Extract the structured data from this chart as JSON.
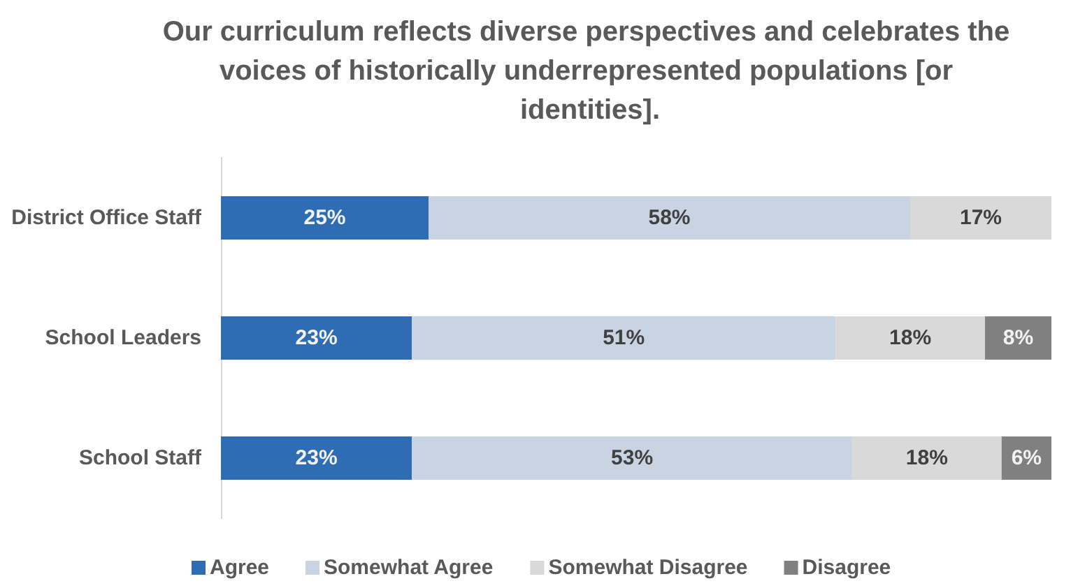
{
  "chart_data": {
    "type": "bar",
    "orientation": "horizontal",
    "stacked": true,
    "title": "Our curriculum reflects diverse perspectives and celebrates the voices of historically underrepresented populations [or identities].",
    "categories": [
      "District Office Staff",
      "School Leaders",
      "School Staff"
    ],
    "series": [
      {
        "name": "Agree",
        "color": "#2e6db4",
        "values": [
          25,
          23,
          23
        ],
        "value_labels": [
          "25%",
          "23%",
          "23%"
        ]
      },
      {
        "name": "Somewhat Agree",
        "color": "#c9d4e2",
        "values": [
          58,
          51,
          53
        ],
        "value_labels": [
          "58%",
          "51%",
          "53%"
        ]
      },
      {
        "name": "Somewhat Disagree",
        "color": "#d9d9d9",
        "values": [
          17,
          18,
          18
        ],
        "value_labels": [
          "17%",
          "18%",
          "18%"
        ]
      },
      {
        "name": "Disagree",
        "color": "#808080",
        "values": [
          null,
          8,
          6
        ],
        "value_labels": [
          null,
          "8%",
          "6%"
        ]
      }
    ],
    "xlim": [
      0,
      100
    ],
    "tick_labels": "y",
    "grid": false,
    "legend": "bottom"
  }
}
